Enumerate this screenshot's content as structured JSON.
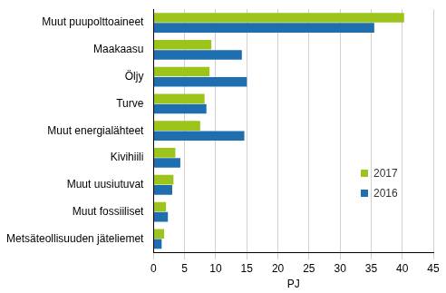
{
  "chart_data": {
    "type": "bar",
    "orientation": "horizontal",
    "categories": [
      "Muut puupolttoaineet",
      "Maakaasu",
      "Öljy",
      "Turve",
      "Muut energialähteet",
      "Kivihiili",
      "Muut uusiutuvat",
      "Muut fossiiliset",
      "Metsäteollisuuden jäteliemet"
    ],
    "series": [
      {
        "name": "2017",
        "color": "#9dc41a",
        "values": [
          40.3,
          9.3,
          9.0,
          8.2,
          7.5,
          3.5,
          3.2,
          2.0,
          1.7
        ]
      },
      {
        "name": "2016",
        "color": "#1f6eb0",
        "values": [
          35.5,
          14.2,
          15.0,
          8.5,
          14.6,
          4.3,
          3.0,
          2.3,
          1.3
        ]
      }
    ],
    "x_label": "PJ",
    "xlim": [
      0,
      45
    ],
    "xticks": [
      0,
      5,
      10,
      15,
      20,
      25,
      30,
      35,
      40,
      45
    ],
    "grid": true,
    "legend": "right"
  }
}
